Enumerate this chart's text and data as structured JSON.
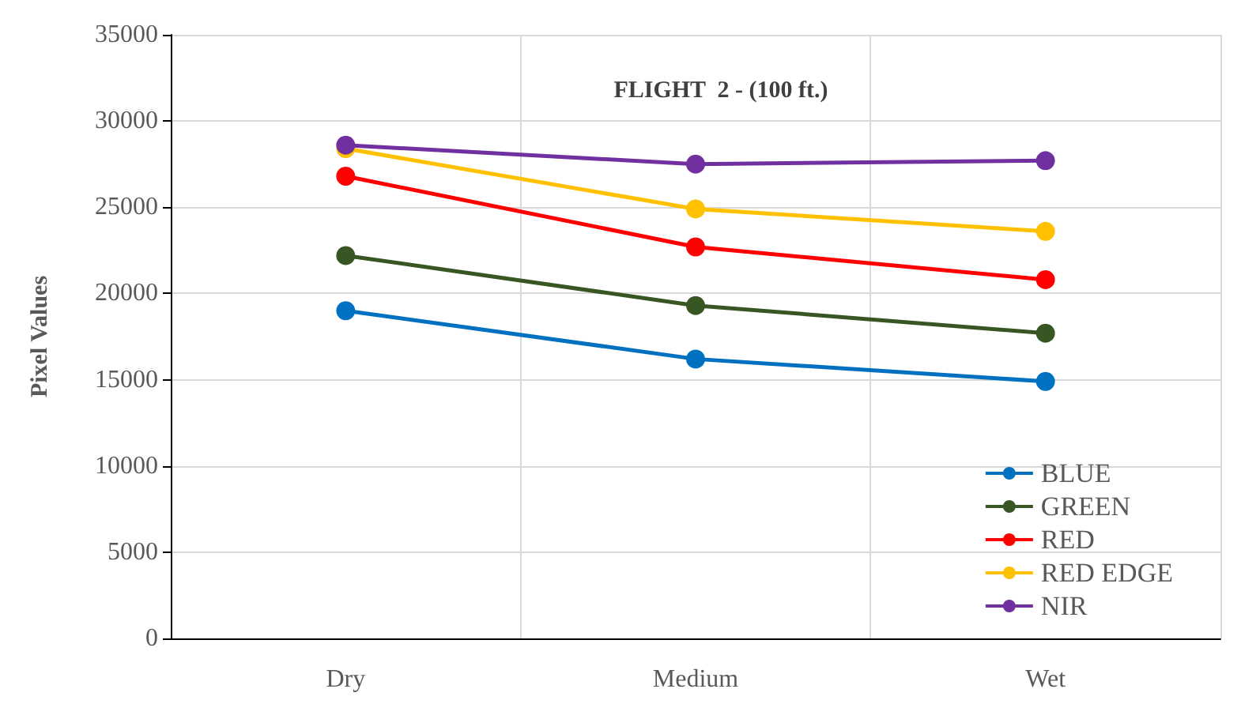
{
  "chart_data": {
    "type": "line",
    "title": "FLIGHT  2 - (100 ft.)",
    "ylabel": "Pixel Values",
    "categories": [
      "Dry",
      "Medium",
      "Wet"
    ],
    "series": [
      {
        "name": "BLUE",
        "color": "#0070c0",
        "values": [
          19000,
          16200,
          14900
        ]
      },
      {
        "name": "GREEN",
        "color": "#375623",
        "values": [
          22200,
          19300,
          17700
        ]
      },
      {
        "name": "RED",
        "color": "#ff0000",
        "values": [
          26800,
          22700,
          20800
        ]
      },
      {
        "name": "RED EDGE",
        "color": "#ffc000",
        "values": [
          28400,
          24900,
          23600
        ]
      },
      {
        "name": "NIR",
        "color": "#7030a0",
        "values": [
          28600,
          27500,
          27700
        ]
      }
    ],
    "ylim": [
      0,
      35000
    ],
    "yticks": [
      0,
      5000,
      10000,
      15000,
      20000,
      25000,
      30000,
      35000
    ],
    "grid": true,
    "legend": "bottom right",
    "marker": "circle",
    "line_style": "solid"
  }
}
